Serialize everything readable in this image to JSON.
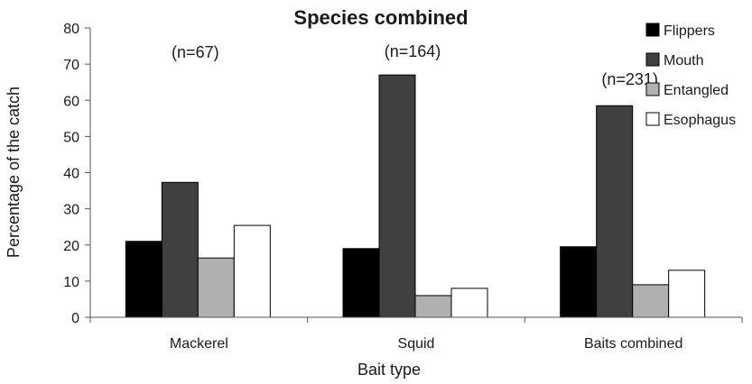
{
  "chart_data": {
    "type": "bar",
    "title": "Species combined",
    "xlabel": "Bait type",
    "ylabel": "Percentage of the catch",
    "ylim": [
      0,
      80
    ],
    "yticks": [
      0,
      10,
      20,
      30,
      40,
      50,
      60,
      70,
      80
    ],
    "categories": [
      "Mackerel",
      "Squid",
      "Baits combined"
    ],
    "annotations": [
      "(n=67)",
      "(n=164)",
      "(n=231)"
    ],
    "series": [
      {
        "name": "Flippers",
        "color": "#000000",
        "values": [
          21,
          19,
          19.5
        ]
      },
      {
        "name": "Mouth",
        "color": "#404040",
        "values": [
          37.3,
          67,
          58.5
        ]
      },
      {
        "name": "Entangled",
        "color": "#b0b0b0",
        "values": [
          16.4,
          6,
          9
        ]
      },
      {
        "name": "Esophagus",
        "color": "#ffffff",
        "values": [
          25.4,
          8,
          13
        ]
      }
    ],
    "legend_position": "top-right",
    "grid": false
  }
}
